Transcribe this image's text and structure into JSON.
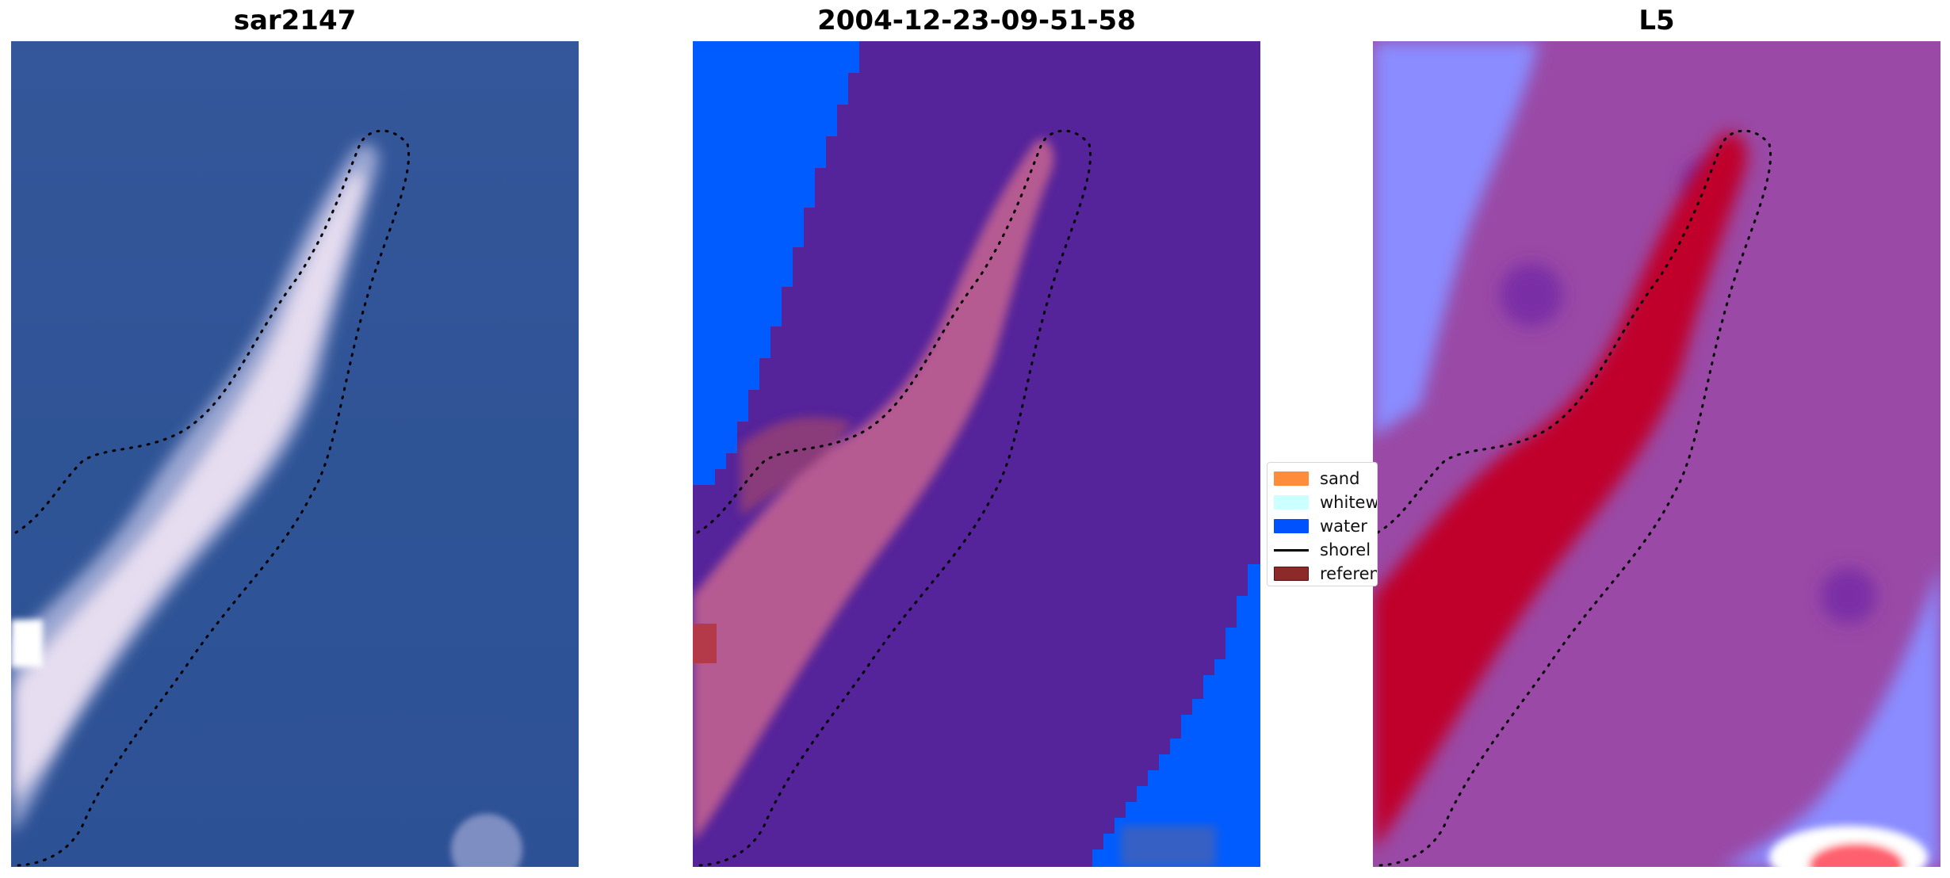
{
  "panels": [
    {
      "title": "sar2147"
    },
    {
      "title": "2004-12-23-09-51-58"
    },
    {
      "title": "L5"
    }
  ],
  "legend": {
    "items": [
      {
        "label": "sand",
        "color": "#ff8c3a",
        "kind": "patch"
      },
      {
        "label": "whitew",
        "color": "#ccffff",
        "kind": "patch"
      },
      {
        "label": "water",
        "color": "#0052ff",
        "kind": "patch"
      },
      {
        "label": "shorel",
        "color": "#000000",
        "kind": "line"
      },
      {
        "label": "referen",
        "color": "#8c2a2a",
        "kind": "patch"
      }
    ]
  },
  "colors": {
    "ocean_rgb": "#2f5596",
    "classified_background": "#55239a",
    "water_class": "#0060ff",
    "sand_tint": "#c05a8e",
    "index_background": "#9a49a6",
    "index_high": "#c0052c",
    "index_low": "#8a8cff"
  }
}
